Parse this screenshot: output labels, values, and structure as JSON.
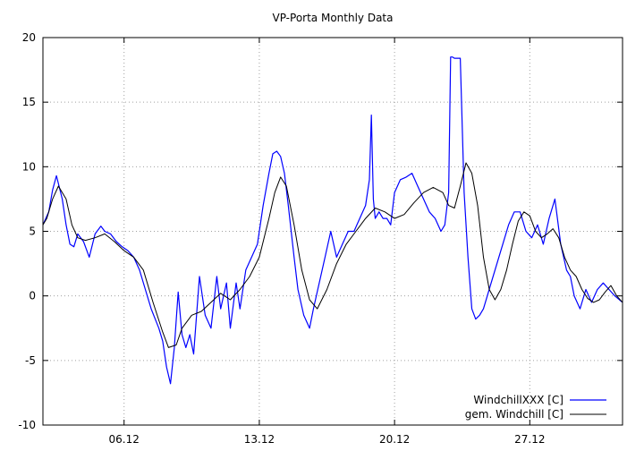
{
  "chart_data": {
    "type": "line",
    "title": "VP-Porta Monthly Data",
    "xlabel": "",
    "ylabel": "",
    "x_unit": "day of month (December)",
    "xlim": [
      1.8,
      31.8
    ],
    "ylim": [
      -10,
      20
    ],
    "y_ticks": [
      -10,
      -5,
      0,
      5,
      10,
      15,
      20
    ],
    "x_ticks": [
      {
        "value": 6,
        "label": "06.12"
      },
      {
        "value": 13,
        "label": "13.12"
      },
      {
        "value": 20,
        "label": "20.12"
      },
      {
        "value": 27,
        "label": "27.12"
      }
    ],
    "grid": true,
    "legend_position": "bottom-right",
    "series": [
      {
        "name": "WindchillXXX [C]",
        "color": "#0000ff",
        "x": [
          1.8,
          2.1,
          2.3,
          2.5,
          2.8,
          3.0,
          3.2,
          3.4,
          3.6,
          3.9,
          4.2,
          4.5,
          4.8,
          5.0,
          5.3,
          5.6,
          5.9,
          6.2,
          6.5,
          6.8,
          7.1,
          7.4,
          7.8,
          8.0,
          8.2,
          8.4,
          8.6,
          8.8,
          9.0,
          9.2,
          9.4,
          9.6,
          9.9,
          10.2,
          10.5,
          10.8,
          11.0,
          11.3,
          11.5,
          11.8,
          12.0,
          12.3,
          12.6,
          12.9,
          13.2,
          13.5,
          13.7,
          13.9,
          14.1,
          14.3,
          14.5,
          14.8,
          15.0,
          15.3,
          15.6,
          15.8,
          16.1,
          16.4,
          16.7,
          17.0,
          17.3,
          17.6,
          17.9,
          18.2,
          18.5,
          18.7,
          18.8,
          18.9,
          19.0,
          19.2,
          19.4,
          19.6,
          19.8,
          20.0,
          20.3,
          20.6,
          20.9,
          21.2,
          21.5,
          21.8,
          22.1,
          22.4,
          22.6,
          22.8,
          22.9,
          23.0,
          23.1,
          23.2,
          23.4,
          23.6,
          23.8,
          24.0,
          24.2,
          24.4,
          24.6,
          24.8,
          25.0,
          25.3,
          25.6,
          25.9,
          26.2,
          26.5,
          26.8,
          27.1,
          27.4,
          27.7,
          28.0,
          28.3,
          28.6,
          28.9,
          29.1,
          29.3,
          29.6,
          29.9,
          30.2,
          30.5,
          30.8,
          31.1,
          31.4,
          31.8
        ],
        "values": [
          5.5,
          6.5,
          8.2,
          9.3,
          7.5,
          5.5,
          4.0,
          3.8,
          4.8,
          4.2,
          3.0,
          4.8,
          5.4,
          5.0,
          4.8,
          4.2,
          3.8,
          3.5,
          3.0,
          2.0,
          0.5,
          -1.0,
          -2.5,
          -3.5,
          -5.5,
          -6.8,
          -4.0,
          0.3,
          -3.0,
          -4.0,
          -3.0,
          -4.5,
          1.5,
          -1.5,
          -2.5,
          1.5,
          -1.0,
          1.0,
          -2.5,
          1.0,
          -1.0,
          2.0,
          3.0,
          4.0,
          7.0,
          9.5,
          11.0,
          11.2,
          10.8,
          9.5,
          7.0,
          3.0,
          0.5,
          -1.5,
          -2.5,
          -1.0,
          1.0,
          3.0,
          5.0,
          3.0,
          4.0,
          5.0,
          5.0,
          6.0,
          7.0,
          9.0,
          14.0,
          7.5,
          6.0,
          6.5,
          6.0,
          6.0,
          5.5,
          8.0,
          9.0,
          9.2,
          9.5,
          8.5,
          7.5,
          6.5,
          6.0,
          5.0,
          5.5,
          8.0,
          18.5,
          18.5,
          18.4,
          18.4,
          18.4,
          8.0,
          3.0,
          -1.0,
          -1.8,
          -1.5,
          -1.0,
          0.0,
          1.0,
          2.5,
          4.0,
          5.5,
          6.5,
          6.5,
          5.0,
          4.5,
          5.5,
          4.0,
          6.0,
          7.5,
          4.0,
          2.0,
          1.5,
          0.0,
          -1.0,
          0.5,
          -0.5,
          0.5,
          1.0,
          0.5,
          0.0,
          -0.5
        ]
      },
      {
        "name": "gem. Windchill [C]",
        "color": "#000000",
        "x": [
          1.8,
          2.0,
          2.3,
          2.6,
          3.0,
          3.3,
          3.6,
          4.0,
          4.5,
          5.0,
          5.5,
          6.0,
          6.5,
          7.0,
          7.5,
          8.0,
          8.3,
          8.7,
          9.0,
          9.5,
          10.0,
          10.5,
          11.0,
          11.5,
          12.0,
          12.5,
          13.0,
          13.5,
          13.8,
          14.1,
          14.4,
          14.8,
          15.2,
          15.6,
          16.0,
          16.5,
          17.0,
          17.5,
          18.0,
          18.5,
          19.0,
          19.5,
          20.0,
          20.5,
          21.0,
          21.5,
          22.0,
          22.5,
          22.8,
          23.1,
          23.4,
          23.7,
          24.0,
          24.3,
          24.6,
          24.9,
          25.2,
          25.5,
          25.8,
          26.1,
          26.4,
          26.7,
          27.0,
          27.3,
          27.6,
          27.9,
          28.2,
          28.5,
          28.8,
          29.1,
          29.4,
          29.7,
          30.0,
          30.3,
          30.6,
          30.9,
          31.2,
          31.5,
          31.8
        ],
        "values": [
          5.5,
          6.0,
          7.5,
          8.5,
          7.5,
          5.5,
          4.5,
          4.3,
          4.5,
          4.8,
          4.2,
          3.5,
          3.0,
          2.0,
          -0.5,
          -2.8,
          -4.0,
          -3.8,
          -2.5,
          -1.5,
          -1.2,
          -0.5,
          0.2,
          -0.3,
          0.5,
          1.5,
          3.0,
          6.0,
          8.0,
          9.2,
          8.5,
          5.5,
          2.0,
          -0.3,
          -1.0,
          0.5,
          2.5,
          4.0,
          5.0,
          6.0,
          6.8,
          6.5,
          6.0,
          6.3,
          7.2,
          8.0,
          8.4,
          8.0,
          7.0,
          6.8,
          8.5,
          10.3,
          9.5,
          7.0,
          3.0,
          0.5,
          -0.3,
          0.5,
          2.0,
          4.0,
          5.8,
          6.5,
          6.2,
          5.0,
          4.5,
          4.8,
          5.2,
          4.5,
          3.0,
          2.0,
          1.5,
          0.5,
          -0.2,
          -0.5,
          -0.3,
          0.3,
          0.8,
          0.0,
          -0.5
        ]
      }
    ]
  }
}
